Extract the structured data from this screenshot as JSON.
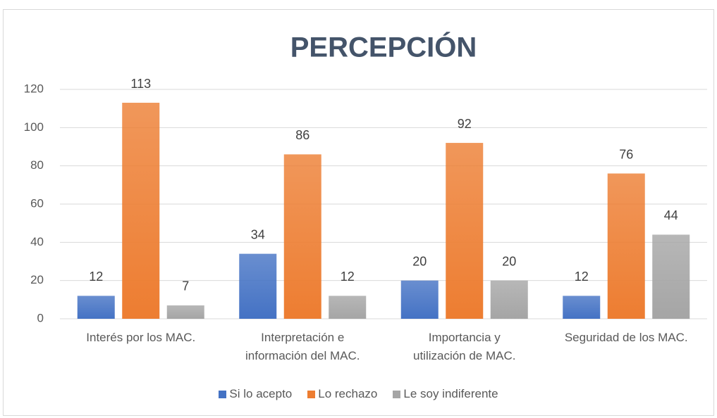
{
  "chart_data": {
    "type": "bar",
    "title": "PERCEPCIÓN",
    "categories": [
      "Interés por los MAC.",
      "Interpretación e información del MAC.",
      "Importancia y utilización de MAC.",
      "Seguridad de los MAC."
    ],
    "series": [
      {
        "name": "Si lo acepto",
        "color": "#4472c4",
        "values": [
          12,
          34,
          20,
          12
        ]
      },
      {
        "name": "Lo rechazo",
        "color": "#ed7d31",
        "values": [
          113,
          86,
          92,
          76
        ]
      },
      {
        "name": "Le soy indiferente",
        "color": "#a5a5a5",
        "values": [
          7,
          12,
          20,
          44
        ]
      }
    ],
    "ylim": [
      0,
      120
    ],
    "yticks": [
      0,
      20,
      40,
      60,
      80,
      100,
      120
    ],
    "grid": true,
    "legend": "bottom"
  }
}
